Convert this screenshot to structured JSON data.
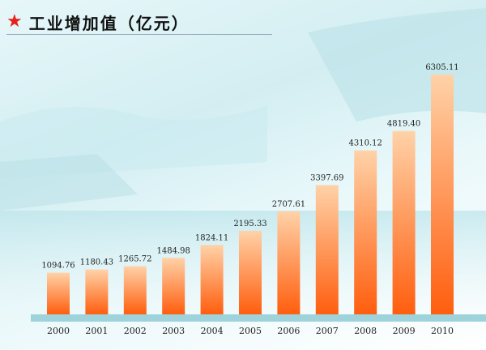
{
  "header": {
    "icon": "star-icon",
    "title": "工业增加值（亿元）"
  },
  "colors": {
    "bar_top": "#ffd2a8",
    "bar_bottom": "#ff5e0e",
    "star": "#e8201a",
    "baseline": "#9fd3dc"
  },
  "chart_data": {
    "type": "bar",
    "title": "工业增加值（亿元）",
    "xlabel": "",
    "ylabel": "",
    "categories": [
      "2000",
      "2001",
      "2002",
      "2003",
      "2004",
      "2005",
      "2006",
      "2007",
      "2008",
      "2009",
      "2010"
    ],
    "values": [
      1094.76,
      1180.43,
      1265.72,
      1484.98,
      1824.11,
      2195.33,
      2707.61,
      3397.69,
      4310.12,
      4819.4,
      6305.11
    ],
    "value_labels": [
      "1094.76",
      "1180.43",
      "1265.72",
      "1484.98",
      "1824.11",
      "2195.33",
      "2707.61",
      "3397.69",
      "4310.12",
      "4819.40",
      "6305.11"
    ],
    "ylim": [
      0,
      6305.11
    ],
    "grid": false,
    "legend": "none"
  }
}
